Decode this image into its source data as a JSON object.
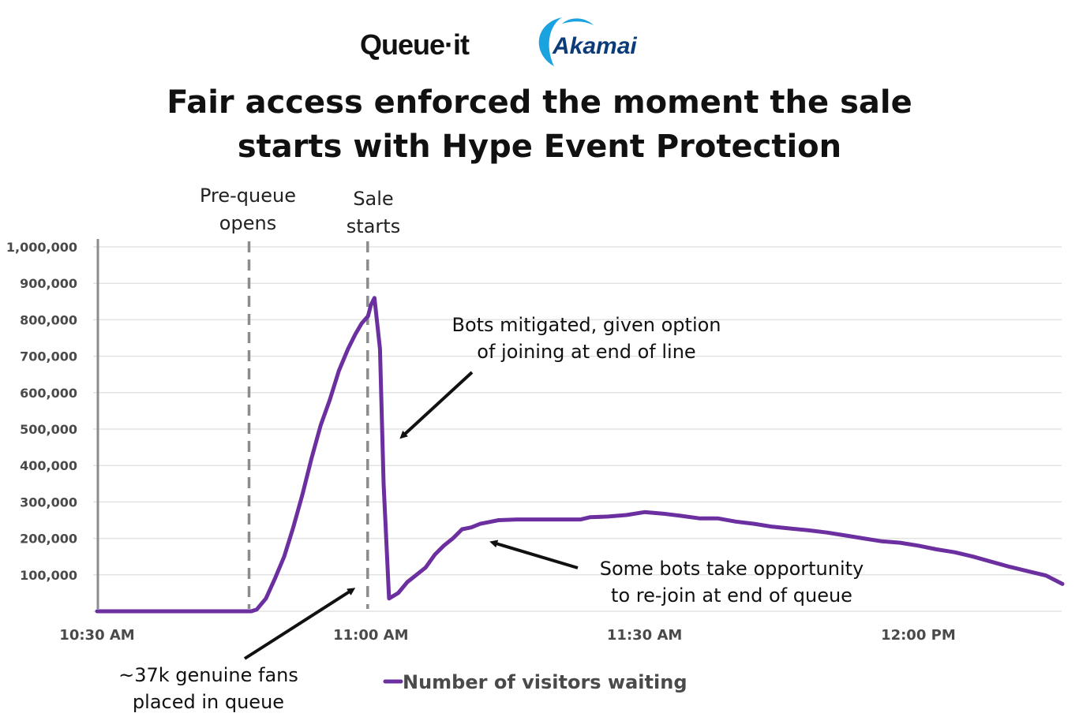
{
  "logos": {
    "queueit": "Queue·it",
    "akamai": "Akamai"
  },
  "colors": {
    "series": "#6b2fa0",
    "grid": "#e3e3e3",
    "axis": "#8c8c8c",
    "event_line": "#8c8c8c",
    "akamai_blue": "#1aa3df",
    "akamai_text": "#0b3b78"
  },
  "title": {
    "line1": "Fair access enforced the moment the sale",
    "line2": "starts with Hype Event Protection"
  },
  "events": [
    {
      "label_line1": "Pre-queue",
      "label_line2": "opens",
      "time": "10:47 AM"
    },
    {
      "label_line1": "Sale",
      "label_line2": "starts",
      "time": "11:00 AM"
    }
  ],
  "annotations": [
    {
      "line1": "Bots mitigated, given option",
      "line2": "of joining at end of line"
    },
    {
      "line1": "Some bots take opportunity",
      "line2": "to re-join at end of queue"
    },
    {
      "line1": "~37k genuine fans",
      "line2": "placed in queue"
    }
  ],
  "legend": {
    "label": "Number of visitors waiting"
  },
  "chart_data": {
    "type": "line",
    "title": "Fair access enforced the moment the sale starts with Hype Event Protection",
    "xlabel": "",
    "ylabel": "",
    "x_ticks": [
      "10:30 AM",
      "11:00 AM",
      "11:30 AM",
      "12:00 PM"
    ],
    "y_ticks": [
      "100,000",
      "200,000",
      "300,000",
      "400,000",
      "500,000",
      "600,000",
      "700,000",
      "800,000",
      "900,000",
      "1,000,000"
    ],
    "ylim": [
      0,
      1000000
    ],
    "xlim_minutes_from_1030": [
      0,
      106
    ],
    "grid": true,
    "legend_position": "bottom",
    "series": [
      {
        "name": "Number of visitors waiting",
        "x_minutes_from_1030": [
          0,
          10,
          16.9,
          17.5,
          18.5,
          19.5,
          20.5,
          21.5,
          22.5,
          23.5,
          24.5,
          25.5,
          26.5,
          27.5,
          28.3,
          29,
          29.7,
          30,
          30.4,
          31,
          31.4,
          32,
          33,
          34,
          35,
          36,
          37,
          38,
          39,
          40,
          41,
          42,
          43,
          44,
          46,
          48,
          50,
          52,
          53,
          54,
          56,
          58,
          60,
          61,
          62,
          64,
          66,
          68,
          70,
          72,
          74,
          76,
          78,
          80,
          82,
          84,
          86,
          88,
          90,
          92,
          94,
          96,
          98,
          100,
          102,
          104,
          105.8
        ],
        "values": [
          0,
          0,
          0,
          5000,
          35000,
          90000,
          150000,
          230000,
          320000,
          420000,
          510000,
          580000,
          660000,
          720000,
          760000,
          790000,
          810000,
          840000,
          860000,
          720000,
          350000,
          35000,
          50000,
          80000,
          100000,
          120000,
          155000,
          180000,
          200000,
          225000,
          230000,
          240000,
          245000,
          250000,
          252000,
          252000,
          252000,
          252000,
          252000,
          258000,
          260000,
          264000,
          272000,
          270000,
          268000,
          262000,
          255000,
          255000,
          246000,
          240000,
          232000,
          227000,
          222000,
          216000,
          208000,
          200000,
          192000,
          188000,
          180000,
          170000,
          162000,
          150000,
          136000,
          122000,
          110000,
          98000,
          75000
        ]
      }
    ],
    "vertical_markers": [
      {
        "label": "Pre-queue opens",
        "x_minutes_from_1030": 17
      },
      {
        "label": "Sale starts",
        "x_minutes_from_1030": 30
      }
    ],
    "annotations": [
      "Bots mitigated, given option of joining at end of line",
      "Some bots take opportunity to re-join at end of queue",
      "~37k genuine fans placed in queue"
    ]
  }
}
